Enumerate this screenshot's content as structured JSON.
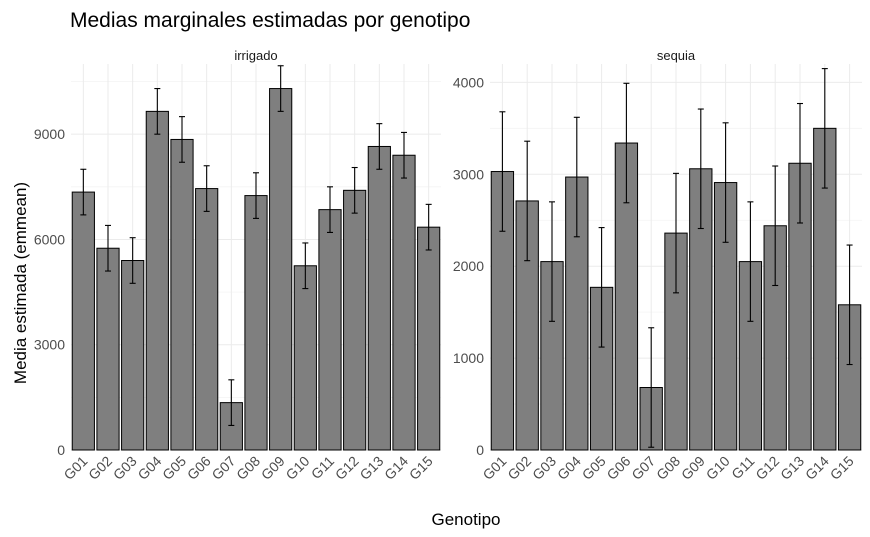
{
  "chart_data": {
    "type": "bar",
    "title": "Medias marginales estimadas por genotipo",
    "xlabel": "Genotipo",
    "ylabel": "Media estimada (emmean)",
    "categories": [
      "G01",
      "G02",
      "G03",
      "G04",
      "G05",
      "G06",
      "G07",
      "G08",
      "G09",
      "G10",
      "G11",
      "G12",
      "G13",
      "G14",
      "G15"
    ],
    "grid": true,
    "panels": [
      {
        "strip": "irrigado",
        "ylim": [
          0,
          11000
        ],
        "yticks": [
          0,
          3000,
          6000,
          9000
        ],
        "yticks_labels": [
          "0",
          "3000",
          "6000",
          "9000"
        ],
        "values": [
          7350,
          5750,
          5400,
          9650,
          8850,
          7450,
          1350,
          7250,
          10300,
          5250,
          6850,
          7400,
          8650,
          8400,
          6350
        ],
        "lower": [
          6700,
          5100,
          4750,
          9000,
          8200,
          6800,
          700,
          6600,
          9650,
          4600,
          6200,
          6750,
          8000,
          7750,
          5700
        ],
        "upper": [
          8000,
          6400,
          6050,
          10300,
          9500,
          8100,
          2000,
          7900,
          10950,
          5900,
          7500,
          8050,
          9300,
          9050,
          7000
        ]
      },
      {
        "strip": "sequia",
        "ylim": [
          0,
          4200
        ],
        "yticks": [
          0,
          1000,
          2000,
          3000,
          4000
        ],
        "yticks_labels": [
          "0",
          "1000",
          "2000",
          "3000",
          "4000"
        ],
        "values": [
          3030,
          2710,
          2050,
          2970,
          1770,
          3340,
          680,
          2360,
          3060,
          2910,
          2050,
          2440,
          3120,
          3500,
          1580
        ],
        "lower": [
          2380,
          2060,
          1400,
          2320,
          1120,
          2690,
          30,
          1710,
          2410,
          2260,
          1400,
          1790,
          2470,
          2850,
          930
        ],
        "upper": [
          3680,
          3360,
          2700,
          3620,
          2420,
          3990,
          1330,
          3010,
          3710,
          3560,
          2700,
          3090,
          3770,
          4150,
          2230
        ]
      }
    ]
  },
  "colors": {
    "bar_fill": "#7f7f7f",
    "bar_outline": "#000000",
    "grid": "#ebebeb",
    "tick_text": "#4d4d4d"
  }
}
